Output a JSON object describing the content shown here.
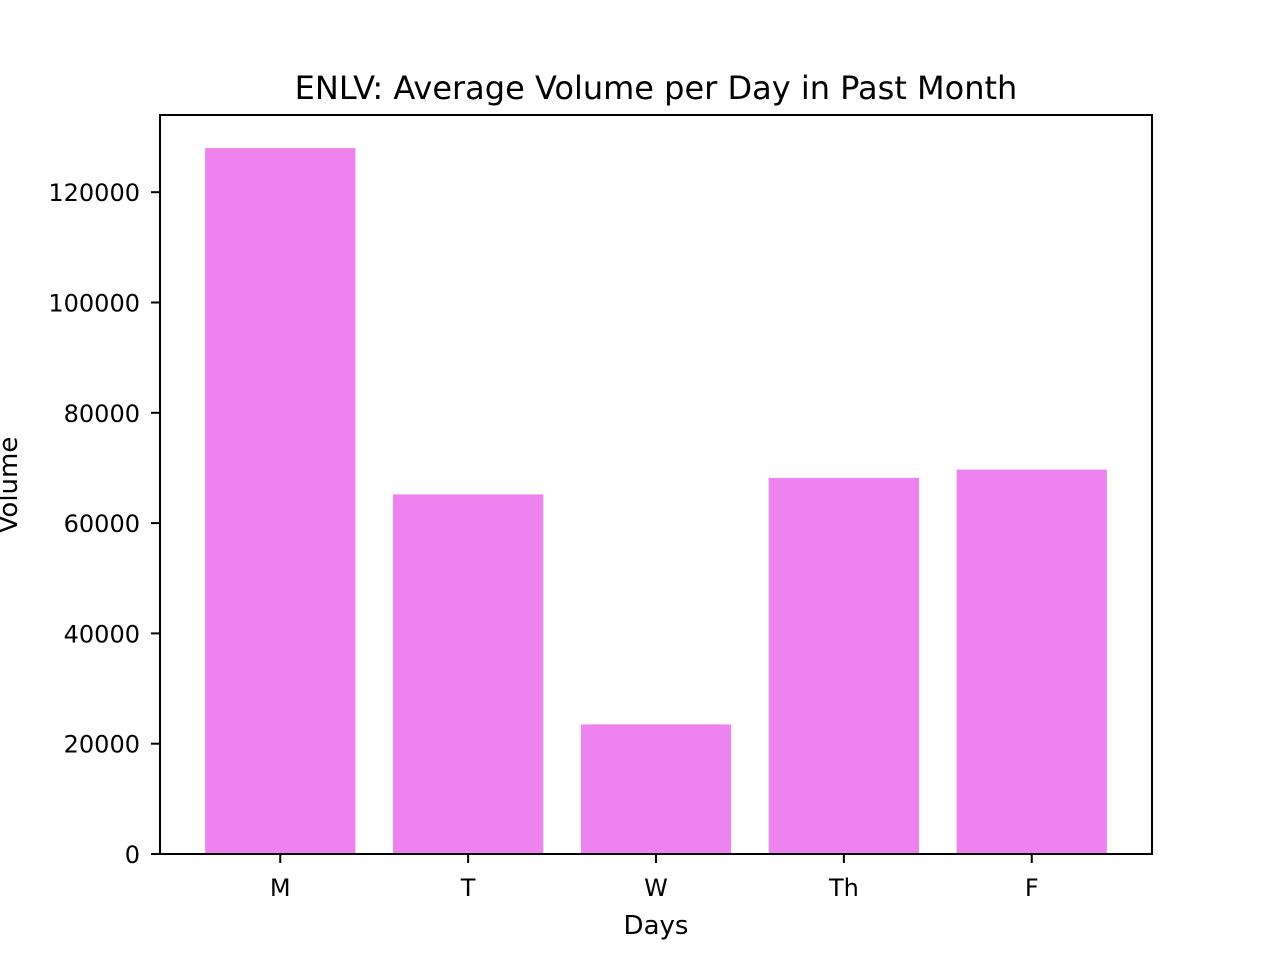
{
  "chart_data": {
    "type": "bar",
    "title": "ENLV: Average Volume per Day in Past Month",
    "xlabel": "Days",
    "ylabel": "Volume",
    "categories": [
      "M",
      "T",
      "W",
      "Th",
      "F"
    ],
    "values": [
      128000,
      65200,
      23500,
      68200,
      69700
    ],
    "ylim": [
      0,
      134000
    ],
    "yticks": [
      0,
      20000,
      40000,
      60000,
      80000,
      100000,
      120000
    ],
    "ytick_labels": [
      "0",
      "20000",
      "40000",
      "60000",
      "80000",
      "100000",
      "120000"
    ],
    "bar_color": "#ee82ee",
    "grid": false,
    "legend": "none"
  }
}
